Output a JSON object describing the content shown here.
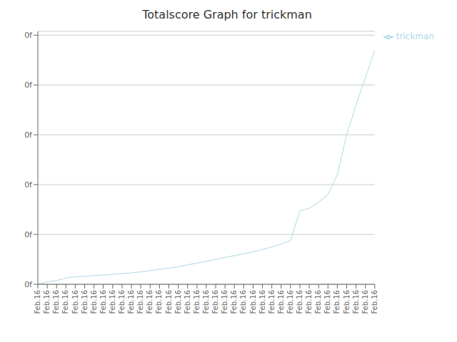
{
  "chart_data": {
    "type": "line",
    "title": "Totalscore Graph for trickman",
    "categories": [
      "Feb.16",
      "Feb.16",
      "Feb.16",
      "Feb.16",
      "Feb.16",
      "Feb.16",
      "Feb.16",
      "Feb.16",
      "Feb.16",
      "Feb.16",
      "Feb.16",
      "Feb.16",
      "Feb.16",
      "Feb.16",
      "Feb.16",
      "Feb.16",
      "Feb.16",
      "Feb.16",
      "Feb.16",
      "Feb.16",
      "Feb.16",
      "Feb.16",
      "Feb.16",
      "Feb.16",
      "Feb.16",
      "Feb.16",
      "Feb.16",
      "Feb.16",
      "Feb.16",
      "Feb.16",
      "Feb.16",
      "Feb.16",
      "Feb.16",
      "Feb.16",
      "Feb.16",
      "Feb.16",
      "Feb.16"
    ],
    "series": [
      {
        "name": "trickman",
        "color": "#add8e6",
        "values": [
          0.0,
          0.01,
          0.015,
          0.025,
          0.03,
          0.032,
          0.035,
          0.037,
          0.04,
          0.043,
          0.046,
          0.05,
          0.055,
          0.06,
          0.065,
          0.07,
          0.078,
          0.085,
          0.092,
          0.1,
          0.108,
          0.115,
          0.122,
          0.13,
          0.14,
          0.15,
          0.162,
          0.175,
          0.295,
          0.305,
          0.33,
          0.36,
          0.44,
          0.6,
          0.72,
          0.83,
          0.94
        ]
      }
    ],
    "ylim": [
      0,
      1.0152
    ],
    "yticks": [
      {
        "value": 0,
        "label": "0f"
      },
      {
        "value": 0.2,
        "label": "0f"
      },
      {
        "value": 0.4,
        "label": "0f"
      },
      {
        "value": 0.6,
        "label": "0f"
      },
      {
        "value": 0.8,
        "label": "0f"
      },
      {
        "value": 1.0,
        "label": "0f"
      }
    ],
    "grid": true,
    "legend": "right"
  }
}
